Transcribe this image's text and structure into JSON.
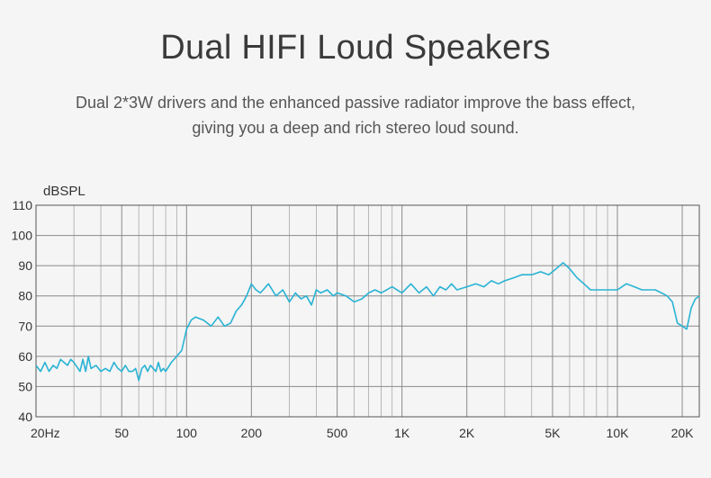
{
  "header": {
    "title": "Dual HIFI Loud Speakers",
    "subtitle_line1": "Dual 2*3W drivers and the enhanced passive radiator improve the bass effect,",
    "subtitle_line2": "giving you a deep and rich stereo loud sound."
  },
  "chart_data": {
    "type": "line",
    "ylabel": "dBSPL",
    "xscale": "log",
    "xlim": [
      20,
      24000
    ],
    "ylim": [
      40,
      110
    ],
    "grid": true,
    "line_color": "#29b3d4",
    "yticks": [
      {
        "value": 110,
        "label": "110"
      },
      {
        "value": 100,
        "label": "100"
      },
      {
        "value": 90,
        "label": "90"
      },
      {
        "value": 80,
        "label": "80"
      },
      {
        "value": 70,
        "label": "70"
      },
      {
        "value": 60,
        "label": "60"
      },
      {
        "value": 50,
        "label": "50"
      },
      {
        "value": 40,
        "label": "40"
      }
    ],
    "xticks": [
      {
        "value": 20,
        "label": "20Hz"
      },
      {
        "value": 50,
        "label": "50"
      },
      {
        "value": 100,
        "label": "100"
      },
      {
        "value": 200,
        "label": "200"
      },
      {
        "value": 500,
        "label": "500"
      },
      {
        "value": 1000,
        "label": "1K"
      },
      {
        "value": 2000,
        "label": "2K"
      },
      {
        "value": 5000,
        "label": "5K"
      },
      {
        "value": 10000,
        "label": "10K"
      },
      {
        "value": 20000,
        "label": "20K"
      }
    ],
    "series": [
      {
        "x": [
          20,
          21,
          22,
          23,
          24,
          25,
          26,
          27,
          28,
          29,
          30,
          32,
          33,
          34,
          35,
          36,
          38,
          40,
          42,
          44,
          46,
          48,
          50,
          52,
          54,
          56,
          58,
          60,
          62,
          64,
          66,
          68,
          70,
          72,
          74,
          76,
          78,
          80,
          85,
          90,
          95,
          100,
          105,
          110,
          120,
          130,
          140,
          150,
          160,
          170,
          180,
          190,
          200,
          210,
          220,
          240,
          260,
          280,
          300,
          320,
          340,
          360,
          380,
          400,
          420,
          450,
          480,
          500,
          550,
          600,
          650,
          700,
          750,
          800,
          900,
          1000,
          1100,
          1200,
          1300,
          1400,
          1500,
          1600,
          1700,
          1800,
          2000,
          2200,
          2400,
          2600,
          2800,
          3000,
          3300,
          3600,
          4000,
          4400,
          4800,
          5200,
          5600,
          6000,
          6500,
          7000,
          7500,
          8000,
          8500,
          9000,
          10000,
          11000,
          12000,
          13000,
          14000,
          15000,
          16000,
          17000,
          18000,
          19000,
          20000,
          21000,
          22000,
          23000,
          24000
        ],
        "y": [
          57,
          55,
          58,
          55,
          57,
          56,
          59,
          58,
          57,
          59,
          58,
          55,
          59,
          55,
          60,
          56,
          57,
          55,
          56,
          55,
          58,
          56,
          55,
          57,
          55,
          55,
          56,
          52,
          56,
          57,
          55,
          57,
          56,
          55,
          58,
          55,
          56,
          55,
          58,
          60,
          62,
          69,
          72,
          73,
          72,
          70,
          73,
          70,
          71,
          75,
          77,
          80,
          84,
          82,
          81,
          84,
          80,
          82,
          78,
          81,
          79,
          80,
          77,
          82,
          81,
          82,
          80,
          81,
          80,
          78,
          79,
          81,
          82,
          81,
          83,
          81,
          84,
          81,
          83,
          80,
          83,
          82,
          84,
          82,
          83,
          84,
          83,
          85,
          84,
          85,
          86,
          87,
          87,
          88,
          87,
          89,
          91,
          89,
          86,
          84,
          82,
          82,
          82,
          82,
          82,
          84,
          83,
          82,
          82,
          82,
          81,
          80,
          78,
          71,
          70,
          69,
          76,
          79,
          80
        ]
      }
    ]
  }
}
